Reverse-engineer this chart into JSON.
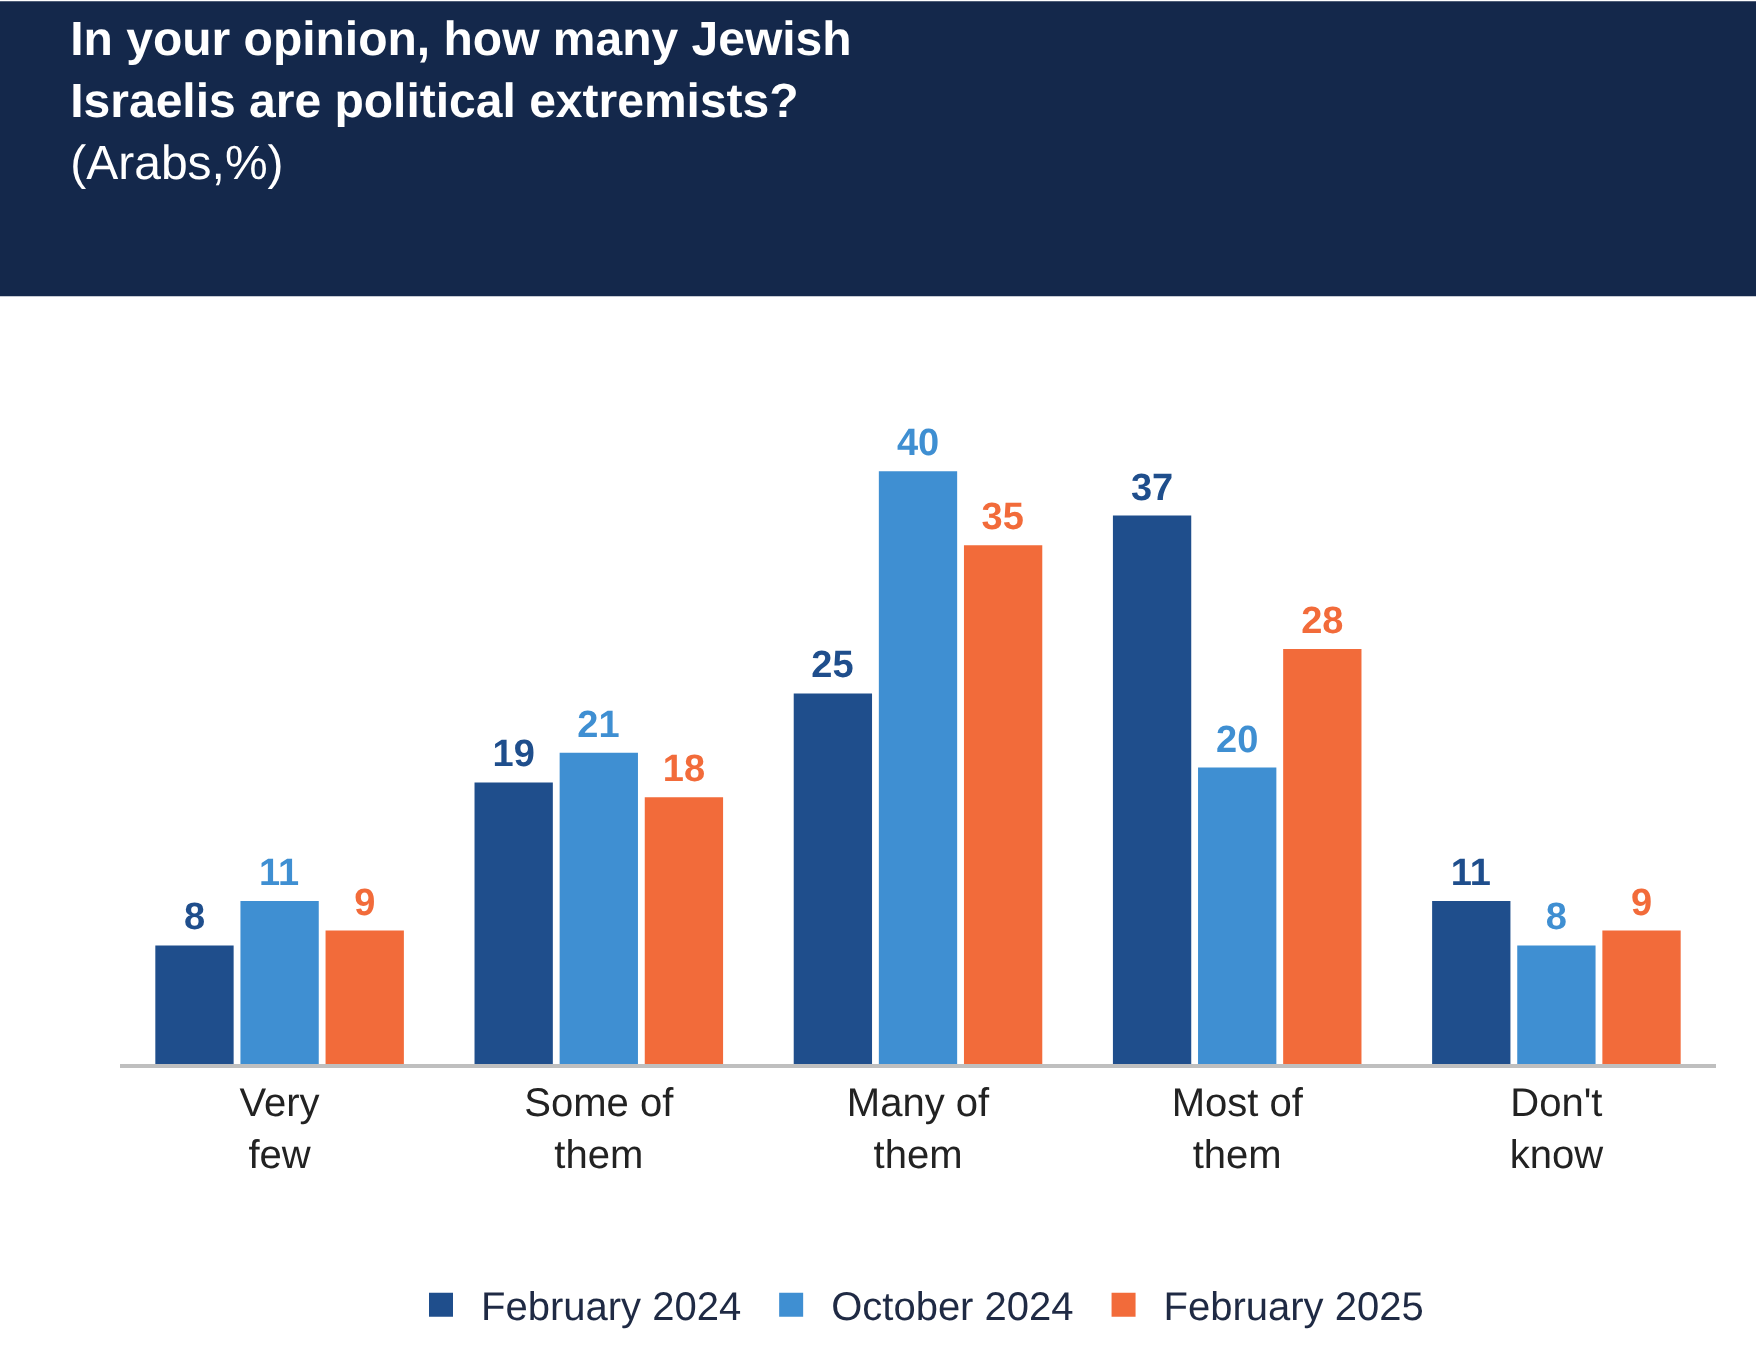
{
  "chart_data": {
    "type": "bar",
    "title": "In your opinion, how many Jewish Israelis are political extremists?",
    "subtitle": "(Arabs,%)",
    "categories": [
      "Very few",
      "Some of them",
      "Many of them",
      "Most of them",
      "Don't know"
    ],
    "series": [
      {
        "name": "February 2024",
        "color": "#1f4e8c",
        "values": [
          8,
          19,
          25,
          37,
          11
        ]
      },
      {
        "name": "October 2024",
        "color": "#3f8fd2",
        "values": [
          11,
          21,
          40,
          20,
          8
        ]
      },
      {
        "name": "February 2025",
        "color": "#f26b3a",
        "values": [
          9,
          18,
          35,
          28,
          9
        ]
      }
    ],
    "data_labels": true,
    "legend": "bottom"
  }
}
